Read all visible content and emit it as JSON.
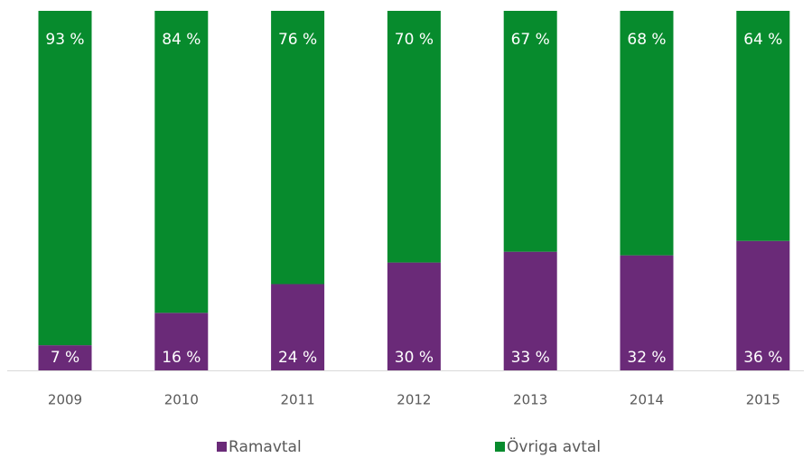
{
  "chart_data": {
    "type": "stacked_bar",
    "categories": [
      "2009",
      "2010",
      "2011",
      "2012",
      "2013",
      "2014",
      "2015"
    ],
    "series": [
      {
        "name": "Ramavtal",
        "color": "#6a2a78",
        "values": [
          7,
          16,
          24,
          30,
          33,
          32,
          36
        ],
        "value_labels": [
          "7 %",
          "16 %",
          "24 %",
          "30 %",
          "33 %",
          "32 %",
          "36 %"
        ]
      },
      {
        "name": "Övriga avtal",
        "color": "#078b2d",
        "values": [
          93,
          84,
          76,
          70,
          67,
          68,
          64
        ],
        "value_labels": [
          "93 %",
          "84 %",
          "76 %",
          "70 %",
          "67 %",
          "68 %",
          "64 %"
        ]
      }
    ],
    "ylim": [
      0,
      100
    ],
    "legend": "bottom"
  }
}
